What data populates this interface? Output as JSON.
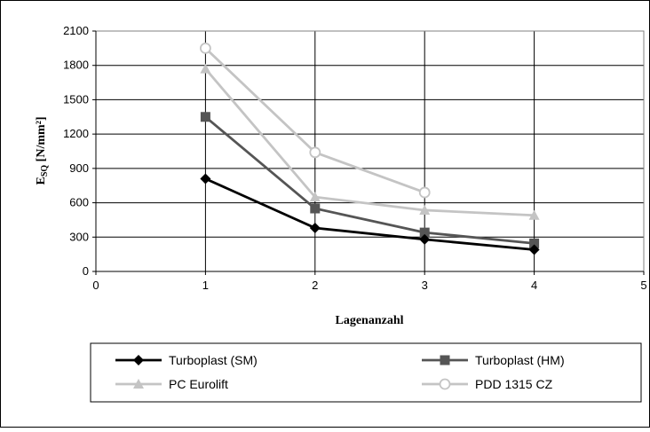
{
  "chart_data": {
    "type": "line",
    "xlabel": "Lagenanzahl",
    "ylabel": {
      "main": "E",
      "subscript": "SQ",
      "unit": "[N/mm²]"
    },
    "xlim": [
      0,
      5
    ],
    "ylim": [
      0,
      2100
    ],
    "x_ticks": [
      0,
      1,
      2,
      3,
      4,
      5
    ],
    "y_ticks": [
      0,
      300,
      600,
      900,
      1200,
      1500,
      1800,
      2100
    ],
    "grid": true,
    "legend_position": "bottom",
    "series": [
      {
        "name": "Turboplast (SM)",
        "color": "#000000",
        "marker": "diamond",
        "x": [
          1,
          2,
          3,
          4
        ],
        "values": [
          810,
          380,
          280,
          190
        ]
      },
      {
        "name": "Turboplast (HM)",
        "color": "#555555",
        "marker": "square",
        "x": [
          1,
          2,
          3,
          4
        ],
        "values": [
          1350,
          550,
          340,
          245
        ]
      },
      {
        "name": "PC Eurolift",
        "color": "#c4c4c4",
        "marker": "triangle",
        "x": [
          1,
          2,
          3,
          4
        ],
        "values": [
          1770,
          650,
          535,
          490
        ]
      },
      {
        "name": "PDD 1315 CZ",
        "color": "#c4c4c4",
        "marker": "open-circle",
        "x": [
          1,
          2,
          3
        ],
        "values": [
          1950,
          1040,
          690
        ]
      }
    ]
  }
}
